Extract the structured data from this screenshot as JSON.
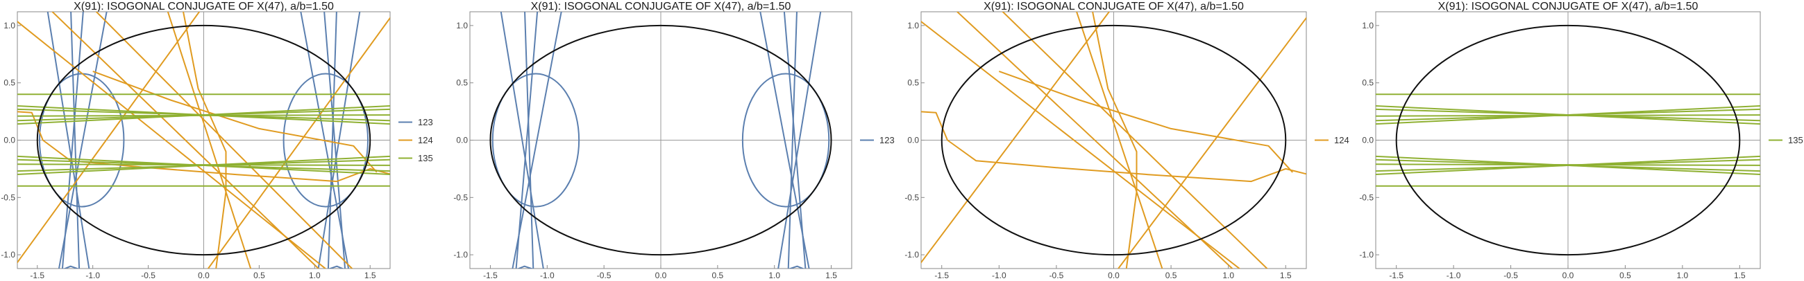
{
  "chart_data": [
    {
      "type": "line",
      "title": "X(91): ISOGONAL CONJUGATE OF X(47), a/b=1.50",
      "xlabel": "",
      "ylabel": "",
      "xlim": [
        -1.68,
        1.68
      ],
      "ylim": [
        -1.12,
        1.12
      ],
      "x_ticks": [
        "-1.5",
        "-1.0",
        "-0.5",
        "0.0",
        "0.5",
        "1.0",
        "1.5"
      ],
      "y_ticks": [
        "-1.0",
        "-0.5",
        "0.0",
        "0.5",
        "1.0"
      ],
      "legend_position": "right",
      "ellipse": {
        "a": 1.5,
        "b": 1.0
      },
      "series": [
        {
          "name": "123",
          "color": "#5b7faf"
        },
        {
          "name": "124",
          "color": "#e09b20"
        },
        {
          "name": "135",
          "color": "#8fb032"
        }
      ]
    },
    {
      "type": "line",
      "title": "X(91): ISOGONAL CONJUGATE OF X(47), a/b=1.50",
      "xlabel": "",
      "ylabel": "",
      "xlim": [
        -1.68,
        1.68
      ],
      "ylim": [
        -1.12,
        1.12
      ],
      "x_ticks": [
        "-1.5",
        "-1.0",
        "-0.5",
        "0.0",
        "0.5",
        "1.0",
        "1.5"
      ],
      "y_ticks": [
        "-1.0",
        "-0.5",
        "0.0",
        "0.5",
        "1.0"
      ],
      "legend_position": "right",
      "ellipse": {
        "a": 1.5,
        "b": 1.0
      },
      "series": [
        {
          "name": "123",
          "color": "#5b7faf"
        }
      ]
    },
    {
      "type": "line",
      "title": "X(91): ISOGONAL CONJUGATE OF X(47), a/b=1.50",
      "xlabel": "",
      "ylabel": "",
      "xlim": [
        -1.68,
        1.68
      ],
      "ylim": [
        -1.12,
        1.12
      ],
      "x_ticks": [
        "-1.5",
        "-1.0",
        "-0.5",
        "0.0",
        "0.5",
        "1.0",
        "1.5"
      ],
      "y_ticks": [
        "-1.0",
        "-0.5",
        "0.0",
        "0.5",
        "1.0"
      ],
      "legend_position": "right",
      "ellipse": {
        "a": 1.5,
        "b": 1.0
      },
      "series": [
        {
          "name": "124",
          "color": "#e09b20"
        }
      ]
    },
    {
      "type": "line",
      "title": "X(91): ISOGONAL CONJUGATE OF X(47), a/b=1.50",
      "xlabel": "",
      "ylabel": "",
      "xlim": [
        -1.68,
        1.68
      ],
      "ylim": [
        -1.12,
        1.12
      ],
      "x_ticks": [
        "-1.5",
        "-1.0",
        "-0.5",
        "0.0",
        "0.5",
        "1.0",
        "1.5"
      ],
      "y_ticks": [
        "-1.0",
        "-0.5",
        "0.0",
        "0.5",
        "1.0"
      ],
      "legend_position": "right",
      "ellipse": {
        "a": 1.5,
        "b": 1.0
      },
      "series": [
        {
          "name": "135",
          "color": "#8fb032"
        }
      ]
    }
  ]
}
